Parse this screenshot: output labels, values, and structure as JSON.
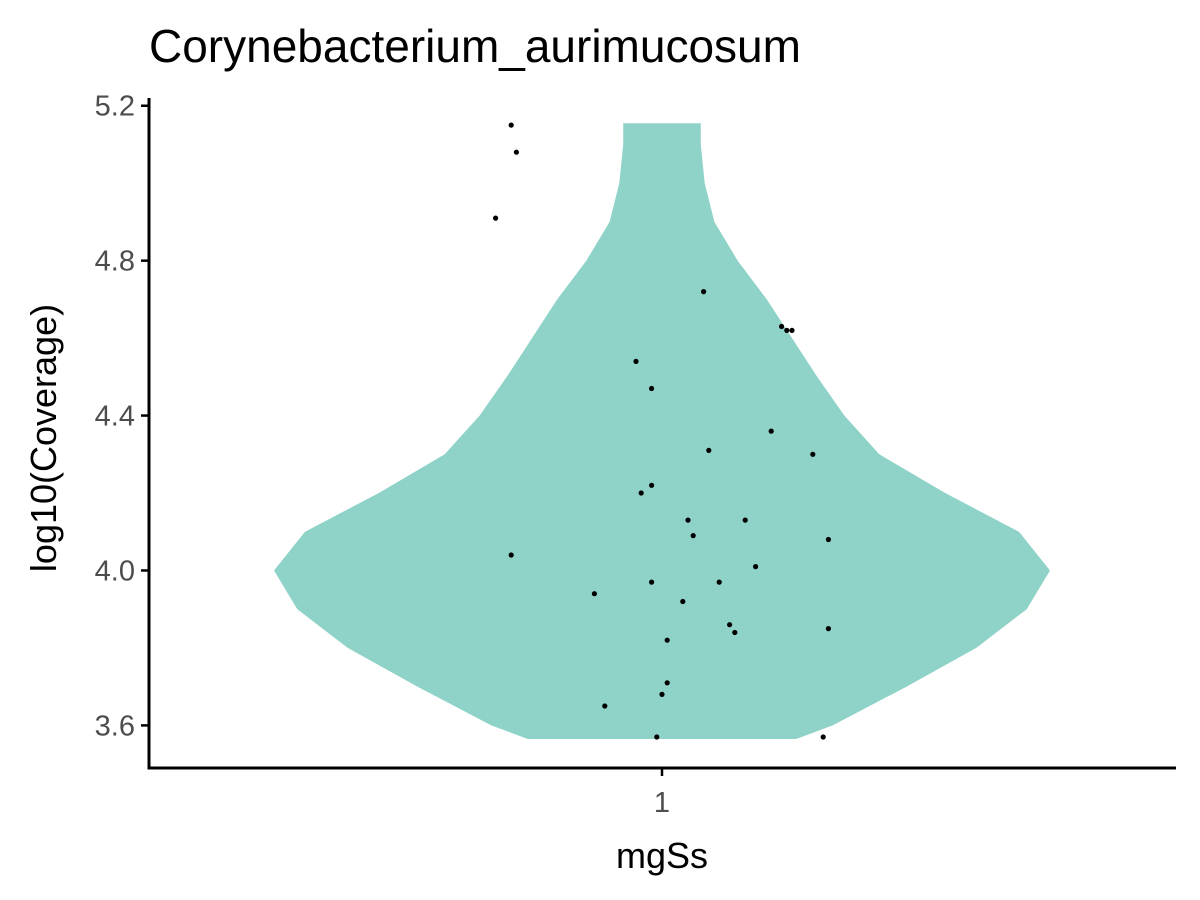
{
  "chart_data": {
    "type": "violin",
    "title": "Corynebacterium_aurimucosum",
    "xlabel": "mgSs",
    "ylabel": "log10(Coverage)",
    "categories": [
      "1"
    ],
    "ylim": [
      3.49,
      5.22
    ],
    "y_ticks": [
      3.6,
      4.0,
      4.4,
      4.8,
      5.2
    ],
    "y_tick_labels": [
      "3.6",
      "4.0",
      "4.4",
      "4.8",
      "5.2"
    ],
    "grid": false,
    "legend": "none",
    "fill_color": "#8fd3c8",
    "point_color": "#000000",
    "violin": {
      "y_min": 3.565,
      "y_max": 5.155,
      "width_profile": [
        {
          "y": 3.565,
          "w": 0.346
        },
        {
          "y": 3.6,
          "w": 0.44
        },
        {
          "y": 3.7,
          "w": 0.63
        },
        {
          "y": 3.8,
          "w": 0.81
        },
        {
          "y": 3.9,
          "w": 0.94
        },
        {
          "y": 4.0,
          "w": 1.0
        },
        {
          "y": 4.1,
          "w": 0.92
        },
        {
          "y": 4.2,
          "w": 0.73
        },
        {
          "y": 4.3,
          "w": 0.56
        },
        {
          "y": 4.4,
          "w": 0.47
        },
        {
          "y": 4.5,
          "w": 0.4
        },
        {
          "y": 4.6,
          "w": 0.335
        },
        {
          "y": 4.7,
          "w": 0.27
        },
        {
          "y": 4.8,
          "w": 0.195
        },
        {
          "y": 4.9,
          "w": 0.135
        },
        {
          "y": 5.0,
          "w": 0.11
        },
        {
          "y": 5.1,
          "w": 0.1
        },
        {
          "y": 5.155,
          "w": 0.1
        }
      ]
    },
    "points": [
      {
        "x": -0.29,
        "y": 5.15
      },
      {
        "x": -0.28,
        "y": 5.08
      },
      {
        "x": -0.32,
        "y": 4.91
      },
      {
        "x": 0.08,
        "y": 4.72
      },
      {
        "x": 0.23,
        "y": 4.63
      },
      {
        "x": 0.24,
        "y": 4.62
      },
      {
        "x": 0.25,
        "y": 4.62
      },
      {
        "x": -0.05,
        "y": 4.54
      },
      {
        "x": -0.02,
        "y": 4.47
      },
      {
        "x": 0.21,
        "y": 4.36
      },
      {
        "x": 0.09,
        "y": 4.31
      },
      {
        "x": 0.29,
        "y": 4.3
      },
      {
        "x": -0.02,
        "y": 4.22
      },
      {
        "x": -0.04,
        "y": 4.2
      },
      {
        "x": 0.05,
        "y": 4.13
      },
      {
        "x": 0.16,
        "y": 4.13
      },
      {
        "x": 0.06,
        "y": 4.09
      },
      {
        "x": 0.32,
        "y": 4.08
      },
      {
        "x": -0.29,
        "y": 4.04
      },
      {
        "x": 0.18,
        "y": 4.01
      },
      {
        "x": -0.02,
        "y": 3.97
      },
      {
        "x": 0.11,
        "y": 3.97
      },
      {
        "x": -0.13,
        "y": 3.94
      },
      {
        "x": 0.04,
        "y": 3.92
      },
      {
        "x": 0.13,
        "y": 3.86
      },
      {
        "x": 0.14,
        "y": 3.84
      },
      {
        "x": 0.32,
        "y": 3.85
      },
      {
        "x": 0.01,
        "y": 3.82
      },
      {
        "x": 0.01,
        "y": 3.71
      },
      {
        "x": 0.0,
        "y": 3.68
      },
      {
        "x": -0.11,
        "y": 3.65
      },
      {
        "x": -0.01,
        "y": 3.57
      },
      {
        "x": 0.31,
        "y": 3.57
      }
    ]
  }
}
